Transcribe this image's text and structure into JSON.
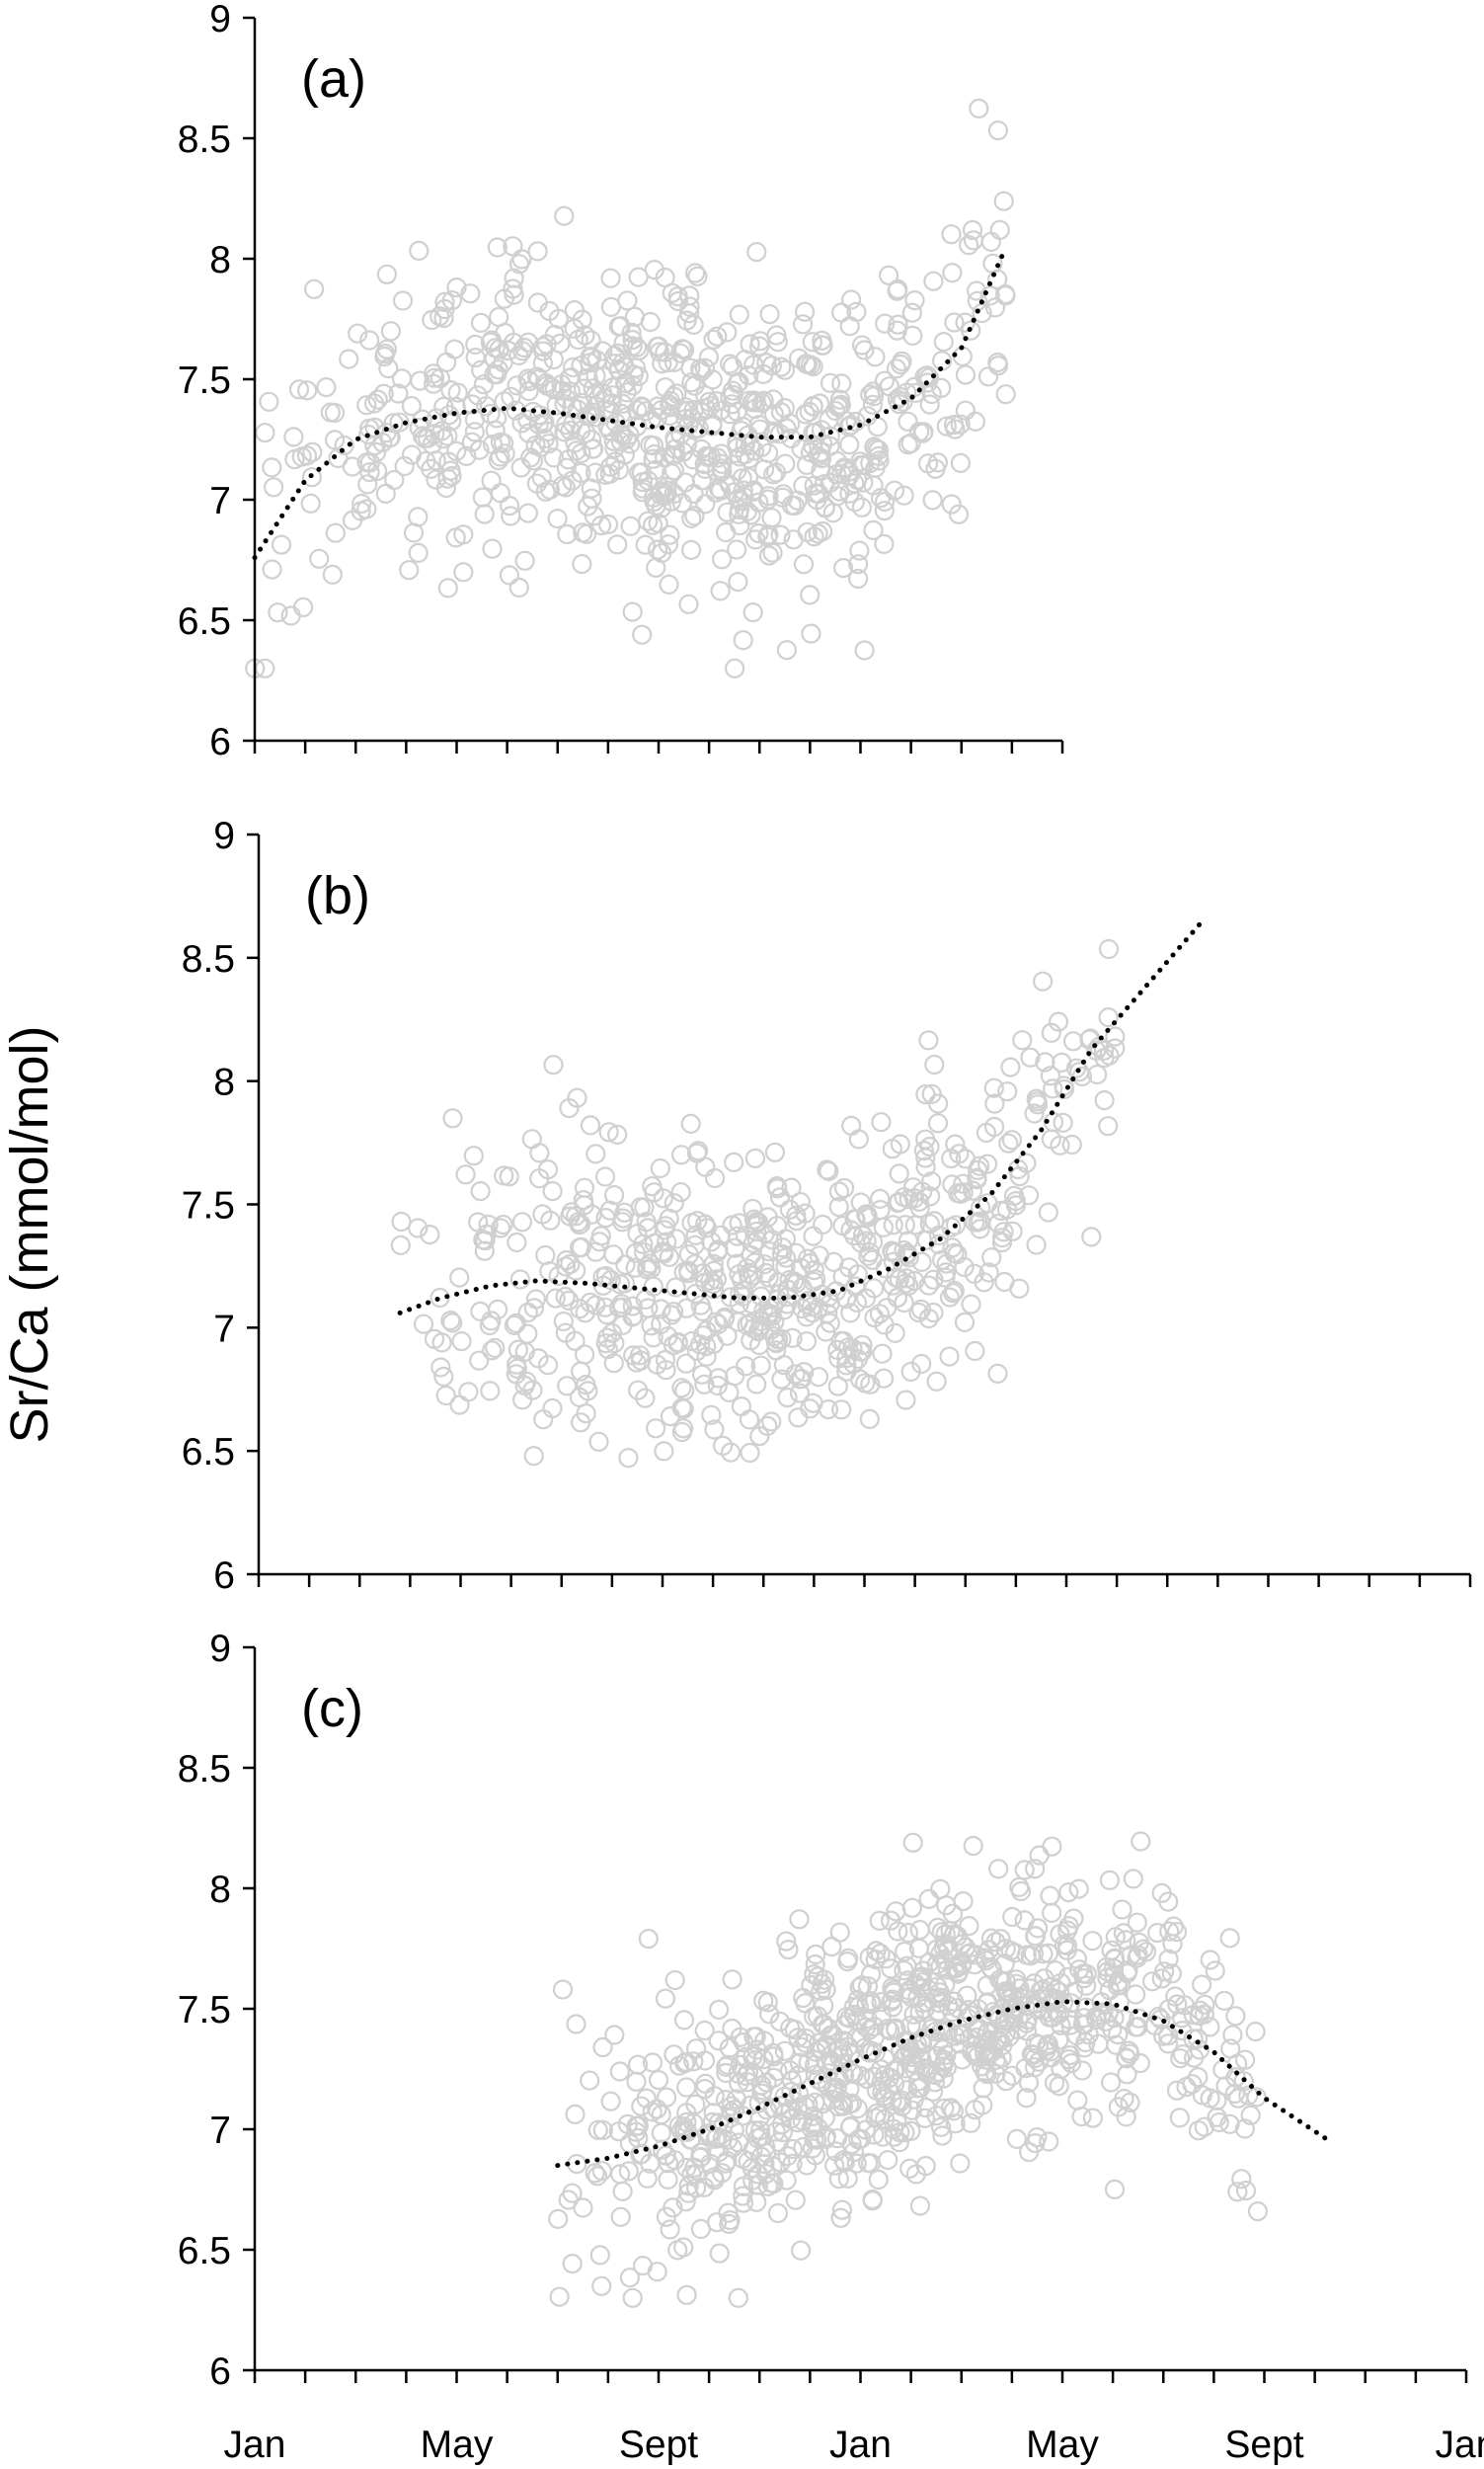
{
  "chart_data": {
    "type": "scatter",
    "ylabel": "Sr/Ca (mmol/mol)",
    "ylim": [
      6,
      9
    ],
    "yticks": [
      "6",
      "6.5",
      "7",
      "7.5",
      "8",
      "8.5",
      "9"
    ],
    "xticks": [
      "Jan",
      "May",
      "Sept",
      "Jan",
      "May",
      "Sept",
      "Jan"
    ],
    "xlim_months": [
      0,
      24
    ],
    "marker": "open-circle",
    "marker_color": "#d0d0d0",
    "trend_style": "dotted",
    "trend_color": "#000000",
    "panels": [
      {
        "label": "(a)",
        "x_range_months": [
          0,
          15
        ],
        "center_months": 8.4,
        "spread_months": 4.2,
        "point_count": 780,
        "trend": [
          [
            0.0,
            6.76
          ],
          [
            1.0,
            7.08
          ],
          [
            2.0,
            7.25
          ],
          [
            3.0,
            7.32
          ],
          [
            4.0,
            7.36
          ],
          [
            5.0,
            7.38
          ],
          [
            6.0,
            7.36
          ],
          [
            7.0,
            7.33
          ],
          [
            8.0,
            7.3
          ],
          [
            9.0,
            7.28
          ],
          [
            10.0,
            7.26
          ],
          [
            11.0,
            7.26
          ],
          [
            12.0,
            7.31
          ],
          [
            13.0,
            7.42
          ],
          [
            14.0,
            7.63
          ],
          [
            14.8,
            8.01
          ]
        ],
        "noise_sd": 0.3
      },
      {
        "label": "(b)",
        "x_range_months": [
          2.8,
          17
        ],
        "center_months": 10.5,
        "spread_months": 3.9,
        "point_count": 640,
        "trend": [
          [
            2.8,
            7.06
          ],
          [
            3.6,
            7.12
          ],
          [
            4.6,
            7.17
          ],
          [
            5.5,
            7.19
          ],
          [
            6.5,
            7.18
          ],
          [
            7.5,
            7.16
          ],
          [
            8.5,
            7.14
          ],
          [
            9.5,
            7.12
          ],
          [
            10.5,
            7.12
          ],
          [
            11.5,
            7.15
          ],
          [
            12.5,
            7.24
          ],
          [
            13.5,
            7.36
          ],
          [
            14.5,
            7.54
          ],
          [
            15.5,
            7.8
          ],
          [
            16.5,
            8.13
          ],
          [
            18.7,
            8.65
          ]
        ],
        "noise_sd": 0.28
      },
      {
        "label": "(c)",
        "x_range_months": [
          6,
          20
        ],
        "center_months": 13.2,
        "spread_months": 3.6,
        "point_count": 900,
        "trend": [
          [
            6.0,
            6.85
          ],
          [
            7.0,
            6.88
          ],
          [
            8.0,
            6.93
          ],
          [
            9.0,
            7.0
          ],
          [
            10.0,
            7.09
          ],
          [
            11.0,
            7.19
          ],
          [
            12.0,
            7.29
          ],
          [
            13.0,
            7.38
          ],
          [
            14.0,
            7.45
          ],
          [
            15.0,
            7.5
          ],
          [
            16.0,
            7.53
          ],
          [
            17.0,
            7.52
          ],
          [
            18.0,
            7.45
          ],
          [
            19.0,
            7.32
          ],
          [
            20.0,
            7.13
          ],
          [
            21.3,
            6.95
          ]
        ],
        "noise_sd": 0.27
      }
    ]
  }
}
